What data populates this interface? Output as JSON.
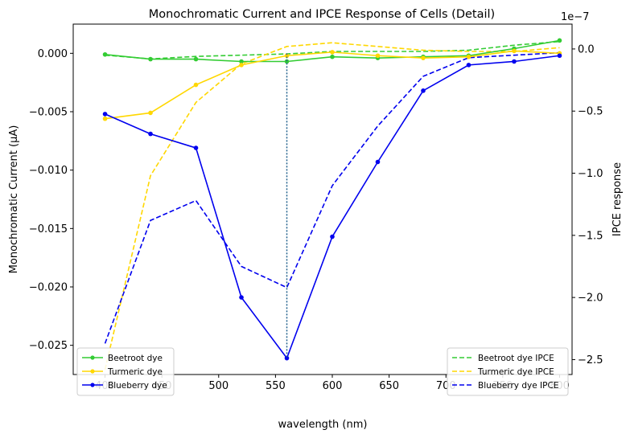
{
  "chart_data": {
    "type": "line",
    "title": "Monochromatic Current and IPCE Response of Cells (Detail)",
    "xlabel": "wavelength (nm)",
    "ylabel_left": "Monochromatic Current (µA)",
    "ylabel_right": "IPCE response",
    "right_axis_offset_text": "1e−7",
    "xlim": [
      372,
      811
    ],
    "ylim_left": [
      -0.0275,
      0.0025
    ],
    "ylim_right": [
      -2.62e-07,
      2e-08
    ],
    "x_ticks": [
      400,
      450,
      500,
      550,
      600,
      650,
      700,
      750,
      800
    ],
    "x_tick_labels": [
      "400",
      "450",
      "500",
      "550",
      "600",
      "650",
      "700",
      "750",
      "800"
    ],
    "y_left_ticks": [
      0.0,
      -0.005,
      -0.01,
      -0.015,
      -0.02,
      -0.025
    ],
    "y_left_tick_labels": [
      "0.000",
      "−0.005",
      "−0.010",
      "−0.015",
      "−0.020",
      "−0.025"
    ],
    "y_right_ticks": [
      0.0,
      -5e-08,
      -1e-07,
      -1.5e-07,
      -2e-07,
      -2.5e-07
    ],
    "y_right_tick_labels": [
      "0.0",
      "−0.5",
      "−1.0",
      "−1.5",
      "−2.0",
      "−2.5"
    ],
    "x": [
      400,
      440,
      480,
      520,
      560,
      600,
      640,
      680,
      720,
      760,
      800
    ],
    "vline_x": 560,
    "legend_left_position": "lower-left",
    "legend_right_position": "lower-right",
    "grid": false,
    "series_current": [
      {
        "name": "Beetroot dye",
        "color": "#33cc33",
        "values": [
          -0.0001,
          -0.0005,
          -0.0005,
          -0.0007,
          -0.0007,
          -0.0003,
          -0.0004,
          -0.0003,
          -0.0002,
          0.0004,
          0.0011
        ]
      },
      {
        "name": "Turmeric dye",
        "color": "#ffd700",
        "values": [
          -0.0056,
          -0.0051,
          -0.0027,
          -0.001,
          -0.0002,
          0.0001,
          -0.0002,
          -0.0004,
          -0.0003,
          0.0002,
          0.0
        ]
      },
      {
        "name": "Blueberry dye",
        "color": "#0000ee",
        "values": [
          -0.0052,
          -0.0069,
          -0.0081,
          -0.0209,
          -0.0261,
          -0.0157,
          -0.0093,
          -0.0032,
          -0.001,
          -0.0007,
          -0.0002
        ]
      }
    ],
    "series_ipce": [
      {
        "name": "Beetroot dye IPCE",
        "color": "#33cc33",
        "values": [
          -5e-09,
          -8e-09,
          -6e-09,
          -5e-09,
          -4e-09,
          -2e-09,
          -2e-09,
          -2e-09,
          -1e-09,
          3e-09,
          6e-09
        ]
      },
      {
        "name": "Turmeric dye IPCE",
        "color": "#ffd700",
        "values": [
          -2.58e-07,
          -1.02e-07,
          -4.3e-08,
          -1.2e-08,
          2e-09,
          5e-09,
          2e-09,
          -1e-09,
          -2e-09,
          -2e-09,
          1e-09
        ]
      },
      {
        "name": "Blueberry dye IPCE",
        "color": "#0000ee",
        "values": [
          -2.37e-07,
          -1.38e-07,
          -1.22e-07,
          -1.75e-07,
          -1.92e-07,
          -1.1e-07,
          -6.2e-08,
          -2.2e-08,
          -7e-09,
          -5e-09,
          -3e-09
        ]
      }
    ]
  }
}
